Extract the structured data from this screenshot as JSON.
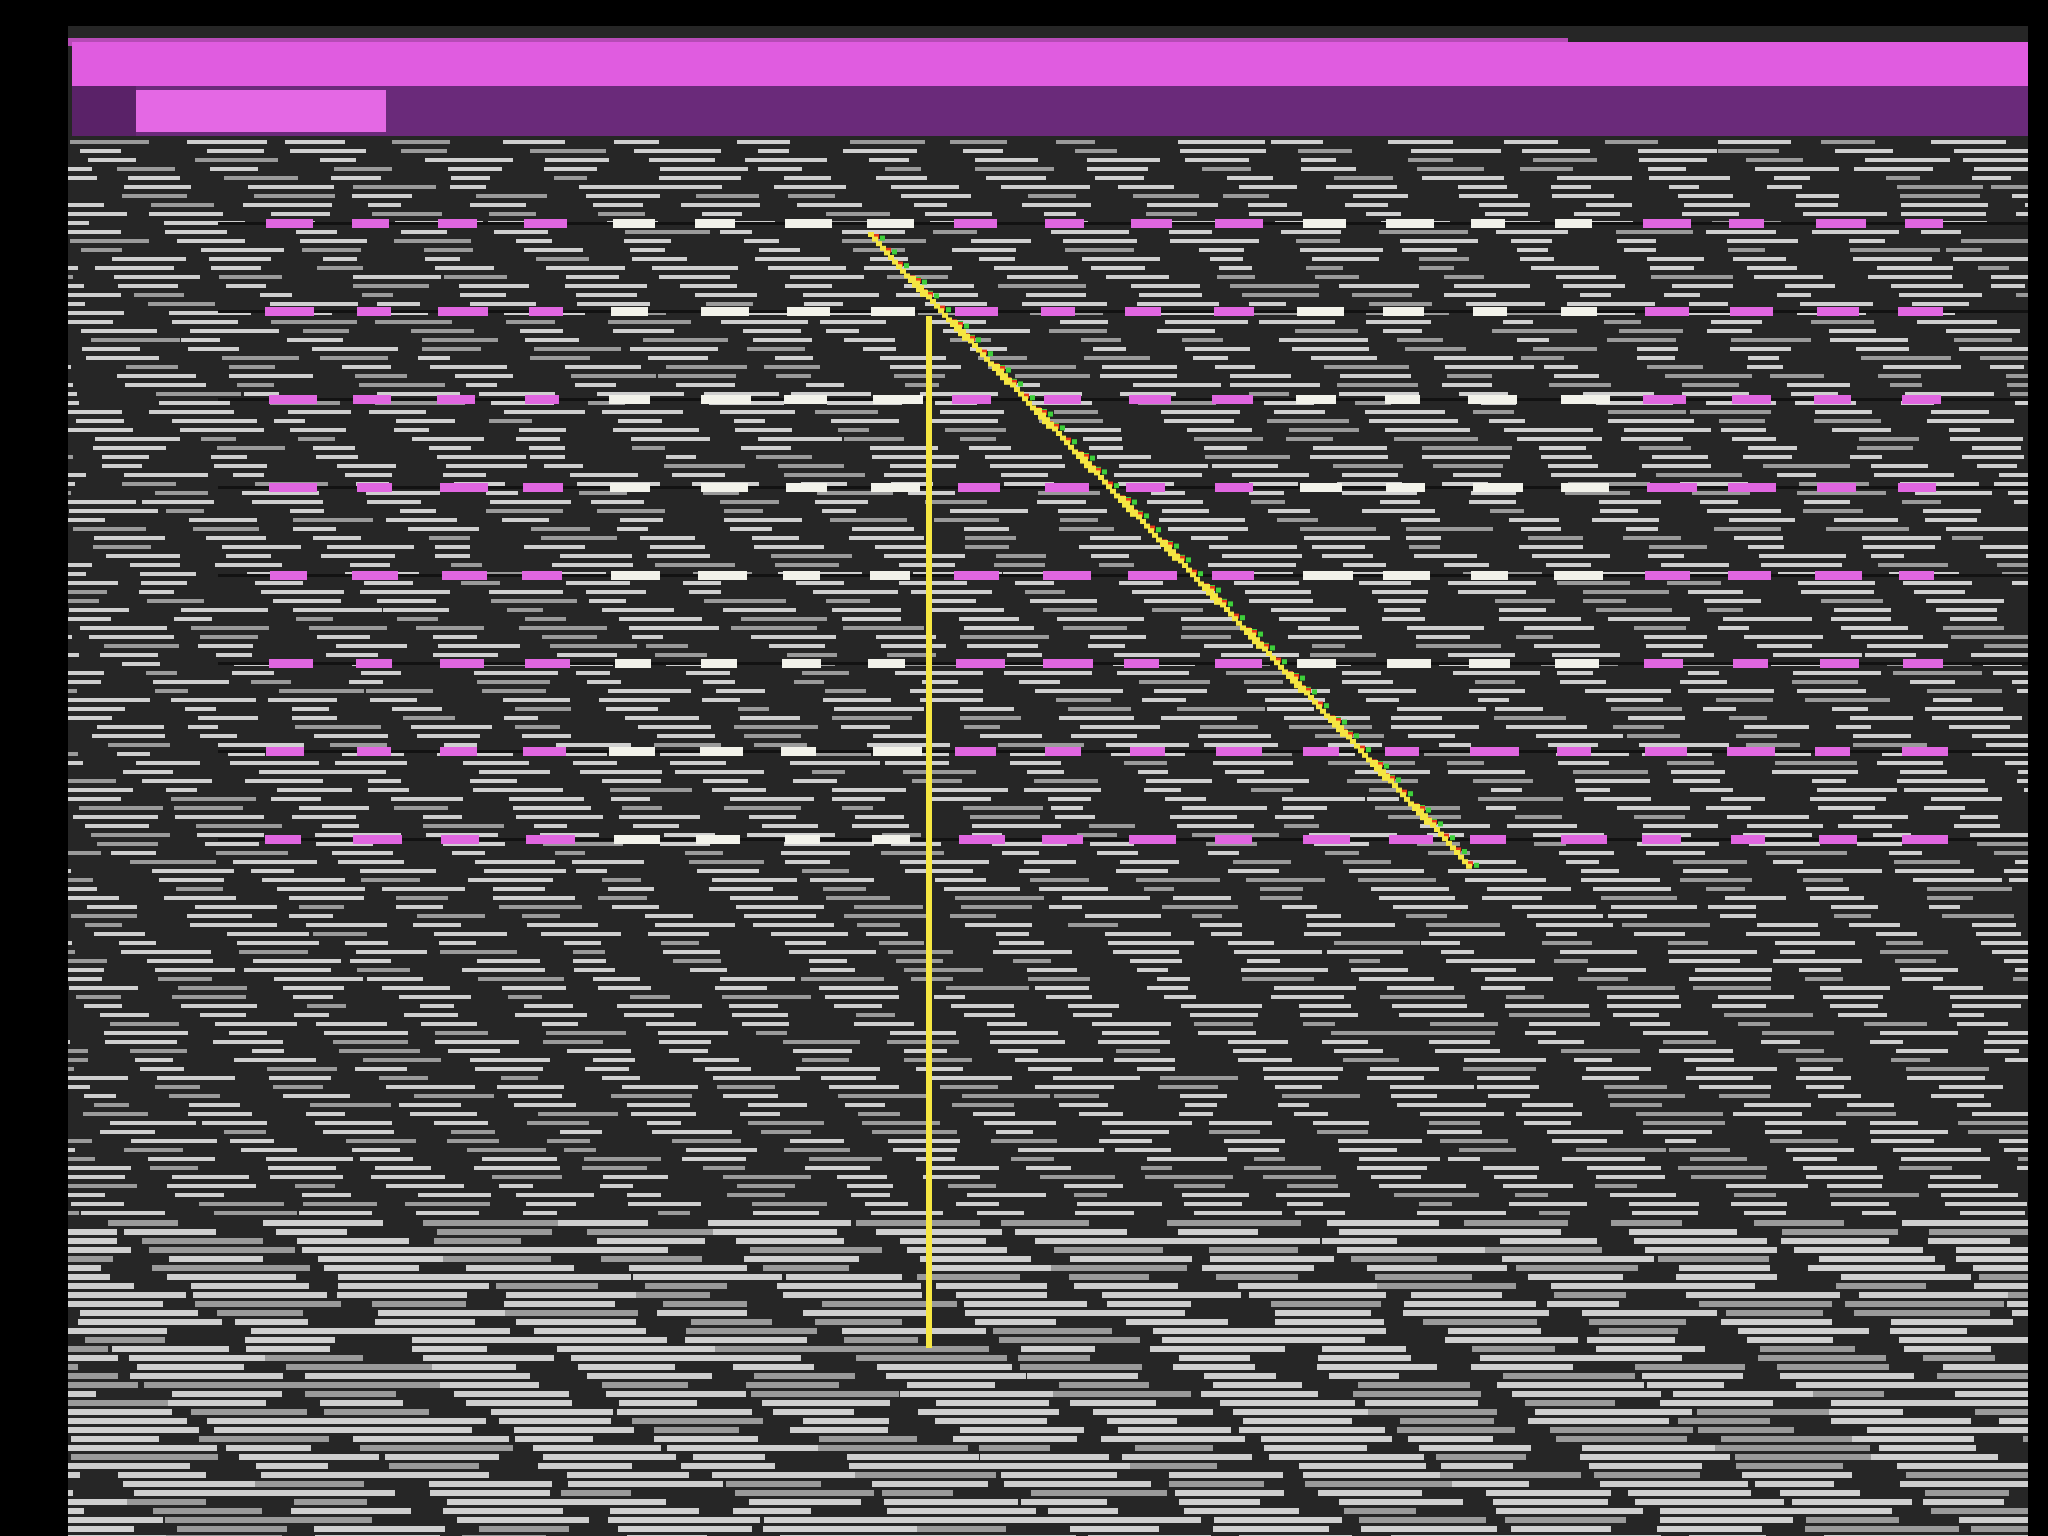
{
  "screen": {
    "state": "corrupted video output",
    "description_visible": false
  },
  "colors": {
    "background": "#262626",
    "noise_light": "#cfcfcf",
    "noise_dim": "#9a9a9a",
    "bar_bright": "#e05ce0",
    "bar_dark": "#6a2a7a",
    "tab_block": "#e468e4",
    "dash_magenta": "#e066e0",
    "dash_white": "#f2f2ea",
    "trace_yellow": "#f5e642",
    "trace_red": "#e83a1a",
    "trace_green": "#3ecf3a"
  },
  "glitch": {
    "dashed_rows": 8,
    "trace_segments": 14
  }
}
